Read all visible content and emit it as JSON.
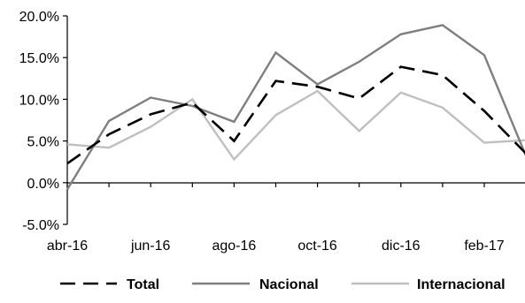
{
  "chart_data": {
    "type": "line",
    "title": "",
    "xlabel": "",
    "ylabel": "",
    "categories": [
      "abr-16",
      "may-16",
      "jun-16",
      "jul-16",
      "ago-16",
      "sep-16",
      "oct-16",
      "nov-16",
      "dic-16",
      "ene-17",
      "feb-17",
      "mar-17"
    ],
    "x_tick_labels": [
      "abr-16",
      "jun-16",
      "ago-16",
      "oct-16",
      "dic-16",
      "feb-17"
    ],
    "ylim": [
      -5,
      20
    ],
    "y_ticks": [
      -5,
      0,
      5,
      10,
      15,
      20
    ],
    "y_tick_labels": [
      "-5.0%",
      "0.0%",
      "5.0%",
      "10.0%",
      "15.0%",
      "20.0%"
    ],
    "grid": false,
    "legend_position": "bottom",
    "series": [
      {
        "name": "Total",
        "color": "#000000",
        "dash": "dashed",
        "values": [
          2.3,
          5.8,
          8.2,
          9.6,
          5.0,
          12.2,
          11.5,
          10.1,
          13.9,
          12.9,
          8.6,
          3.5
        ]
      },
      {
        "name": "Nacional",
        "color": "#7f7f7f",
        "dash": "solid",
        "values": [
          -0.8,
          7.4,
          10.2,
          9.2,
          7.3,
          15.6,
          11.8,
          14.5,
          17.8,
          18.9,
          15.3,
          3.2
        ]
      },
      {
        "name": "Internacional",
        "color": "#bfbfbf",
        "dash": "solid",
        "values": [
          4.6,
          4.2,
          6.7,
          10.0,
          2.8,
          8.1,
          11.0,
          6.2,
          10.8,
          9.0,
          4.8,
          5.1
        ]
      }
    ]
  }
}
